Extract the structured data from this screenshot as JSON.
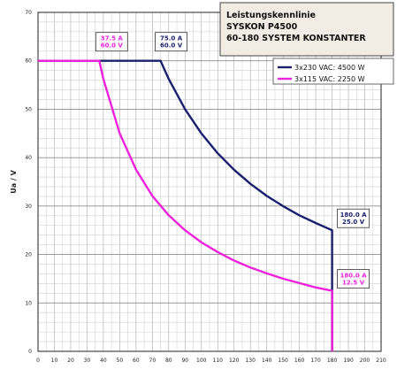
{
  "chart_data": {
    "type": "line",
    "title_lines": [
      "Leistungskennlinie",
      "SYSKON P4500",
      "60-180 SYSTEM KONSTANTER"
    ],
    "xlabel": "",
    "ylabel": "Ua / V",
    "xlim": [
      0,
      210
    ],
    "ylim": [
      0,
      70
    ],
    "x_ticks": [
      "0",
      "10",
      "20",
      "30",
      "40",
      "50",
      "60",
      "70",
      "80",
      "90",
      "100",
      "110",
      "120",
      "130",
      "140",
      "150",
      "160",
      "170",
      "180",
      "190",
      "200",
      "210"
    ],
    "y_ticks": [
      "0",
      "10",
      "20",
      "30",
      "40",
      "50",
      "60",
      "70"
    ],
    "grid": true,
    "legend_position": "top-right",
    "series": [
      {
        "name": "3x230 VAC: 4500 W",
        "color": "#1a1f6e",
        "x": [
          0,
          75,
          80,
          90,
          100,
          110,
          120,
          130,
          140,
          150,
          160,
          170,
          180,
          180
        ],
        "y": [
          60,
          60,
          56.25,
          50,
          45,
          40.9,
          37.5,
          34.6,
          32.1,
          30,
          28.1,
          26.5,
          25,
          0
        ]
      },
      {
        "name": "3x115 VAC: 2250 W",
        "color": "#ee22dd",
        "x": [
          0,
          37.5,
          40,
          50,
          60,
          70,
          80,
          90,
          100,
          110,
          120,
          130,
          140,
          150,
          160,
          170,
          180,
          180
        ],
        "y": [
          60,
          60,
          56.25,
          45,
          37.5,
          32.1,
          28.1,
          25,
          22.5,
          20.5,
          18.75,
          17.3,
          16.1,
          15,
          14.1,
          13.2,
          12.5,
          0
        ]
      }
    ],
    "annotations": [
      {
        "lines": [
          "37.5 A",
          "60.0 V"
        ],
        "x": 37.5,
        "y": 60,
        "color": "#ee22dd"
      },
      {
        "lines": [
          "75.0 A",
          "60.0 V"
        ],
        "x": 75,
        "y": 60,
        "color": "#1a1f6e"
      },
      {
        "lines": [
          "180.0 A",
          "25.0 V"
        ],
        "x": 180,
        "y": 25,
        "color": "#1a1f6e"
      },
      {
        "lines": [
          "180.0 A",
          "12.5 V"
        ],
        "x": 180,
        "y": 12.5,
        "color": "#ee22dd"
      }
    ]
  }
}
